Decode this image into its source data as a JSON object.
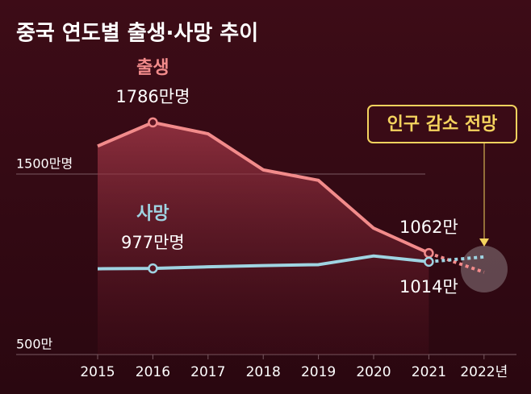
{
  "chart_data": {
    "type": "line",
    "title": "중국 연도별 출생·사망 추이",
    "categories": [
      "2015",
      "2016",
      "2017",
      "2018",
      "2019",
      "2020",
      "2021",
      "2022년"
    ],
    "series": [
      {
        "name": "출생",
        "color": "#f28b8b",
        "values": [
          1655,
          1786,
          1723,
          1523,
          1465,
          1200,
          1062,
          956
        ],
        "value_labels": [
          null,
          "1786만명",
          null,
          null,
          null,
          null,
          "1062만",
          null
        ]
      },
      {
        "name": "사망",
        "color": "#9fd4e2",
        "values": [
          975,
          977,
          986,
          993,
          998,
          1046,
          1014,
          1041
        ],
        "value_labels": [
          null,
          "977만명",
          null,
          null,
          null,
          null,
          "1014만",
          null
        ]
      }
    ],
    "ylim": [
      500,
      1900
    ],
    "yticks": [
      {
        "value": 500,
        "label": "500만"
      },
      {
        "value": 1500,
        "label": "1500만명"
      }
    ],
    "annotation": "인구 감소 전망"
  }
}
